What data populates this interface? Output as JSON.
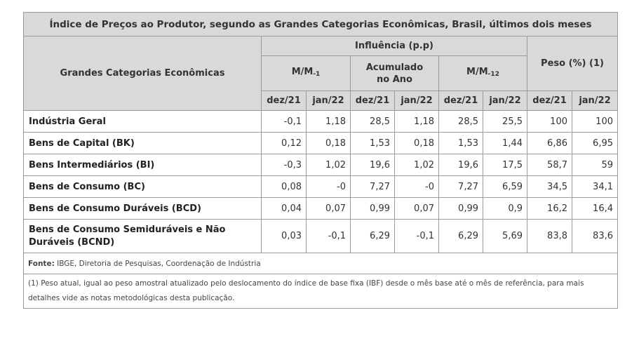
{
  "title": "Índice de Preços ao Produtor, segundo as Grandes Categorias Econômicas, Brasil, últimos dois meses",
  "headers": {
    "category_col": "Grandes Categorias Econômicas",
    "influence": "Influência (p.p)",
    "mm1_main": "M/M",
    "mm1_sub": "-1",
    "accum_line1": "Acumulado",
    "accum_line2": "no Ano",
    "mm12_main": "M/M",
    "mm12_sub": "-12",
    "weight": "Peso (%)  (1)",
    "months": [
      "dez/21",
      "jan/22",
      "dez/21",
      "jan/22",
      "dez/21",
      "jan/22",
      "dez/21",
      "jan/22"
    ]
  },
  "rows": [
    {
      "category": "Indústria Geral",
      "values": [
        "-0,1",
        "1,18",
        "28,5",
        "1,18",
        "28,5",
        "25,5",
        "100",
        "100"
      ]
    },
    {
      "category": "Bens de Capital (BK)",
      "values": [
        "0,12",
        "0,18",
        "1,53",
        "0,18",
        "1,53",
        "1,44",
        "6,86",
        "6,95"
      ]
    },
    {
      "category": "Bens Intermediários (BI)",
      "values": [
        "-0,3",
        "1,02",
        "19,6",
        "1,02",
        "19,6",
        "17,5",
        "58,7",
        "59"
      ]
    },
    {
      "category": "Bens de Consumo (BC)",
      "values": [
        "0,08",
        "-0",
        "7,27",
        "-0",
        "7,27",
        "6,59",
        "34,5",
        "34,1"
      ]
    },
    {
      "category": "Bens de Consumo Duráveis (BCD)",
      "values": [
        "0,04",
        "0,07",
        "0,99",
        "0,07",
        "0,99",
        "0,9",
        "16,2",
        "16,4"
      ]
    },
    {
      "category": "Bens de Consumo Semiduráveis e Não Duráveis (BCND)",
      "values": [
        "0,03",
        "-0,1",
        "6,29",
        "-0,1",
        "6,29",
        "5,69",
        "83,8",
        "83,6"
      ]
    }
  ],
  "footer": {
    "source_label": "Fonte:",
    "source_text": " IBGE, Diretoria de Pesquisas, Coordenação de Indústria",
    "note": "(1) Peso atual, igual ao peso amostral atualizado pelo deslocamento do índice de base fixa (IBF) desde o mês base até o mês de referência, para mais detalhes vide as notas metodológicas desta publicação."
  }
}
